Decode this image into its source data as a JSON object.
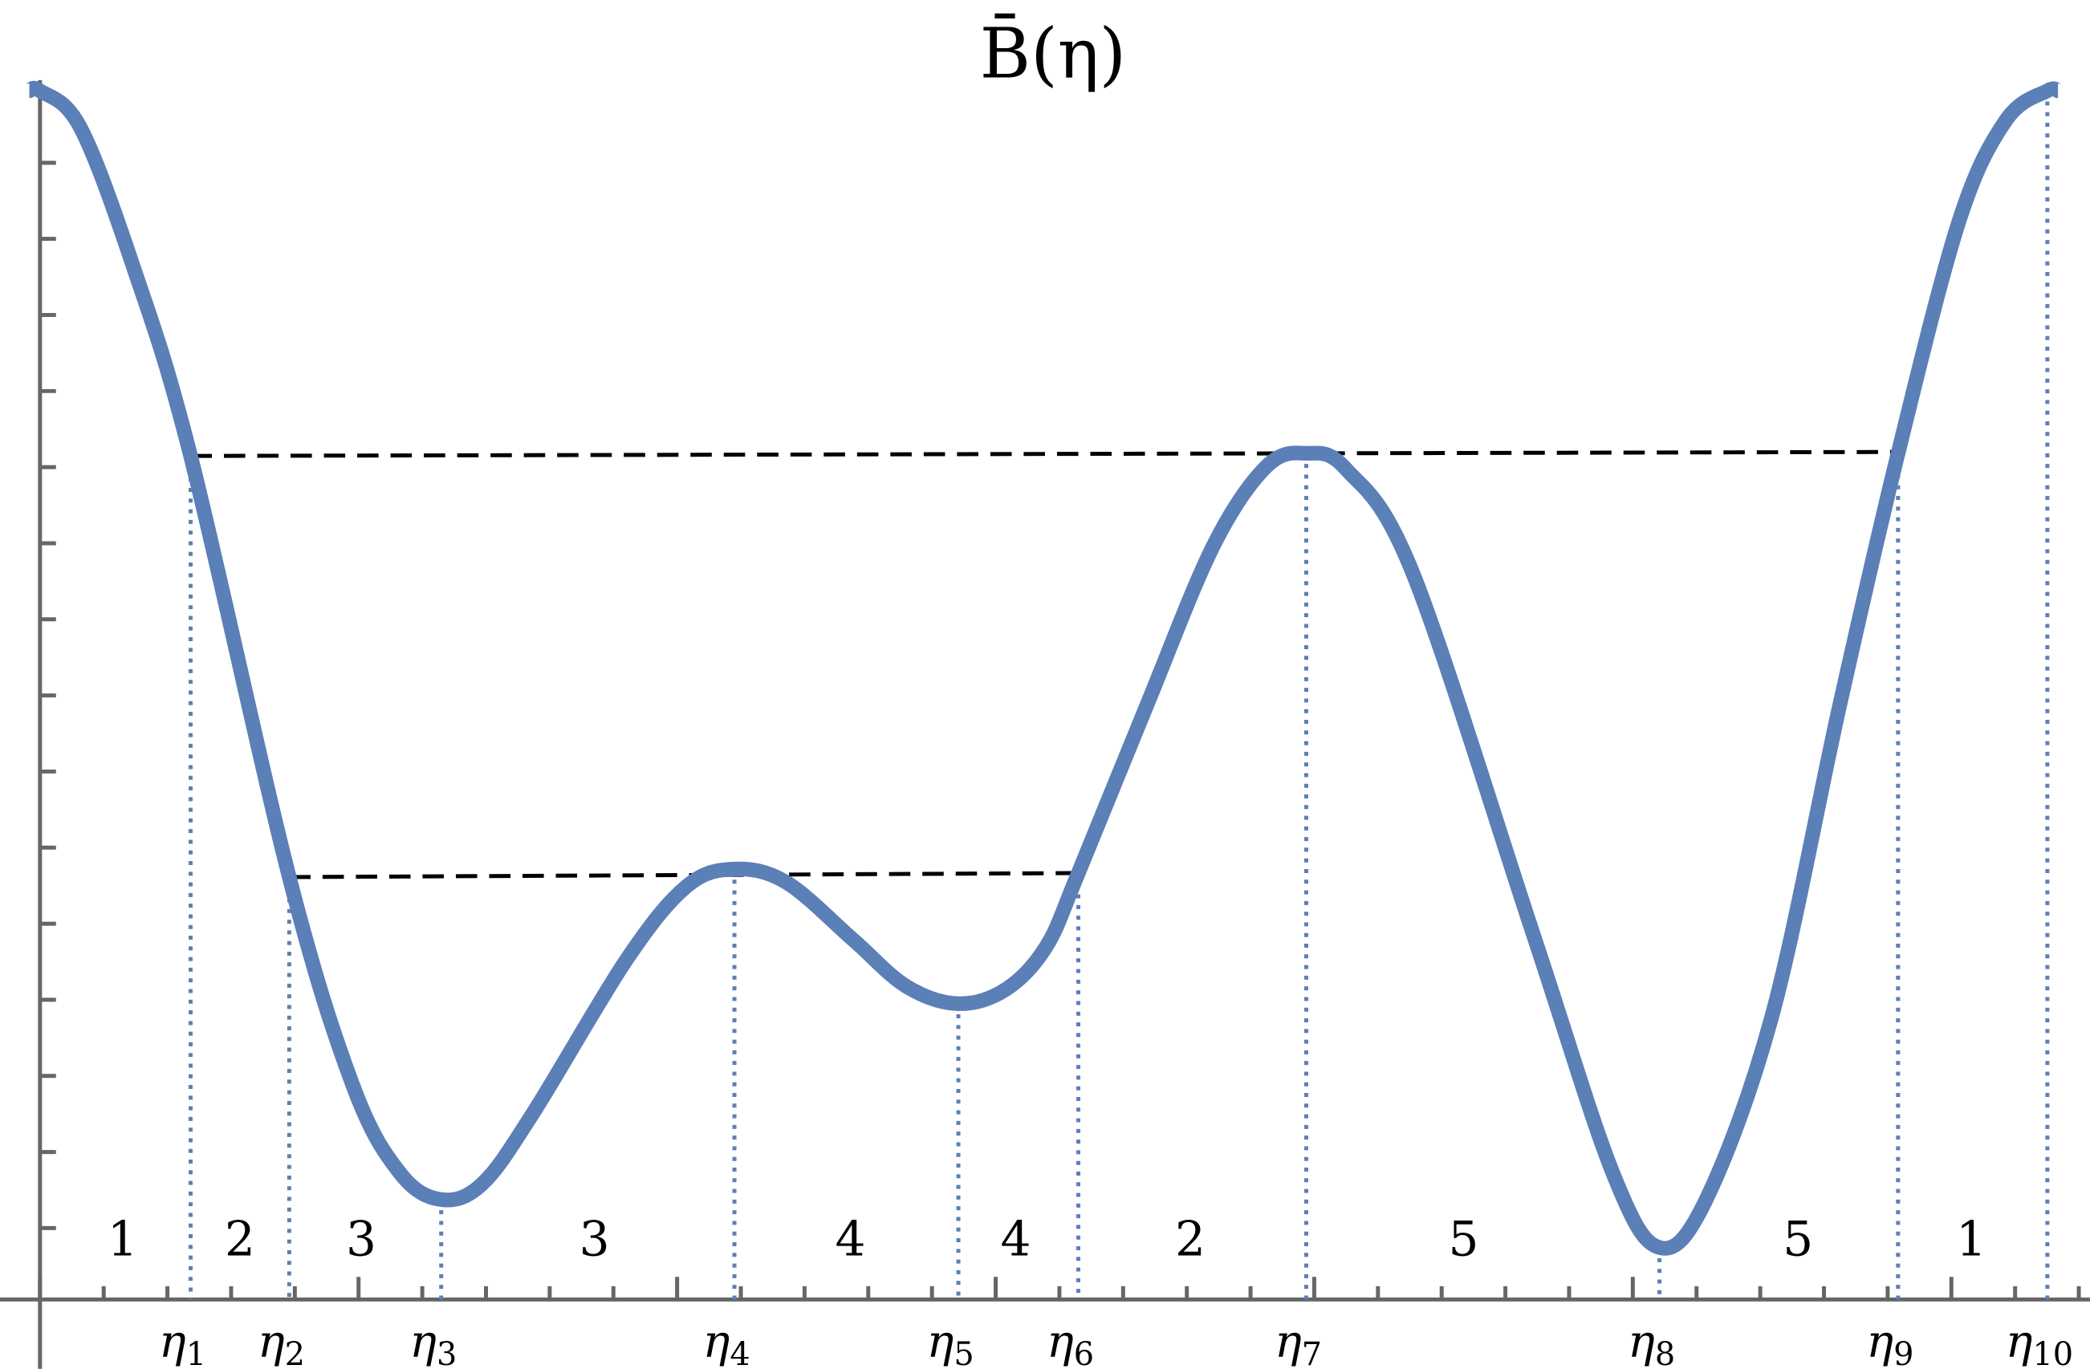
{
  "title": "B̄(η)",
  "eta_labels": [
    {
      "symbol": "η",
      "sub": "1"
    },
    {
      "symbol": "η",
      "sub": "2"
    },
    {
      "symbol": "η",
      "sub": "3"
    },
    {
      "symbol": "η",
      "sub": "4"
    },
    {
      "symbol": "η",
      "sub": "5"
    },
    {
      "symbol": "η",
      "sub": "6"
    },
    {
      "symbol": "η",
      "sub": "7"
    },
    {
      "symbol": "η",
      "sub": "8"
    },
    {
      "symbol": "η",
      "sub": "9"
    },
    {
      "symbol": "η",
      "sub": "10"
    }
  ],
  "regions": [
    "1",
    "2",
    "3",
    "3",
    "4",
    "4",
    "2",
    "5",
    "5",
    "1"
  ]
}
